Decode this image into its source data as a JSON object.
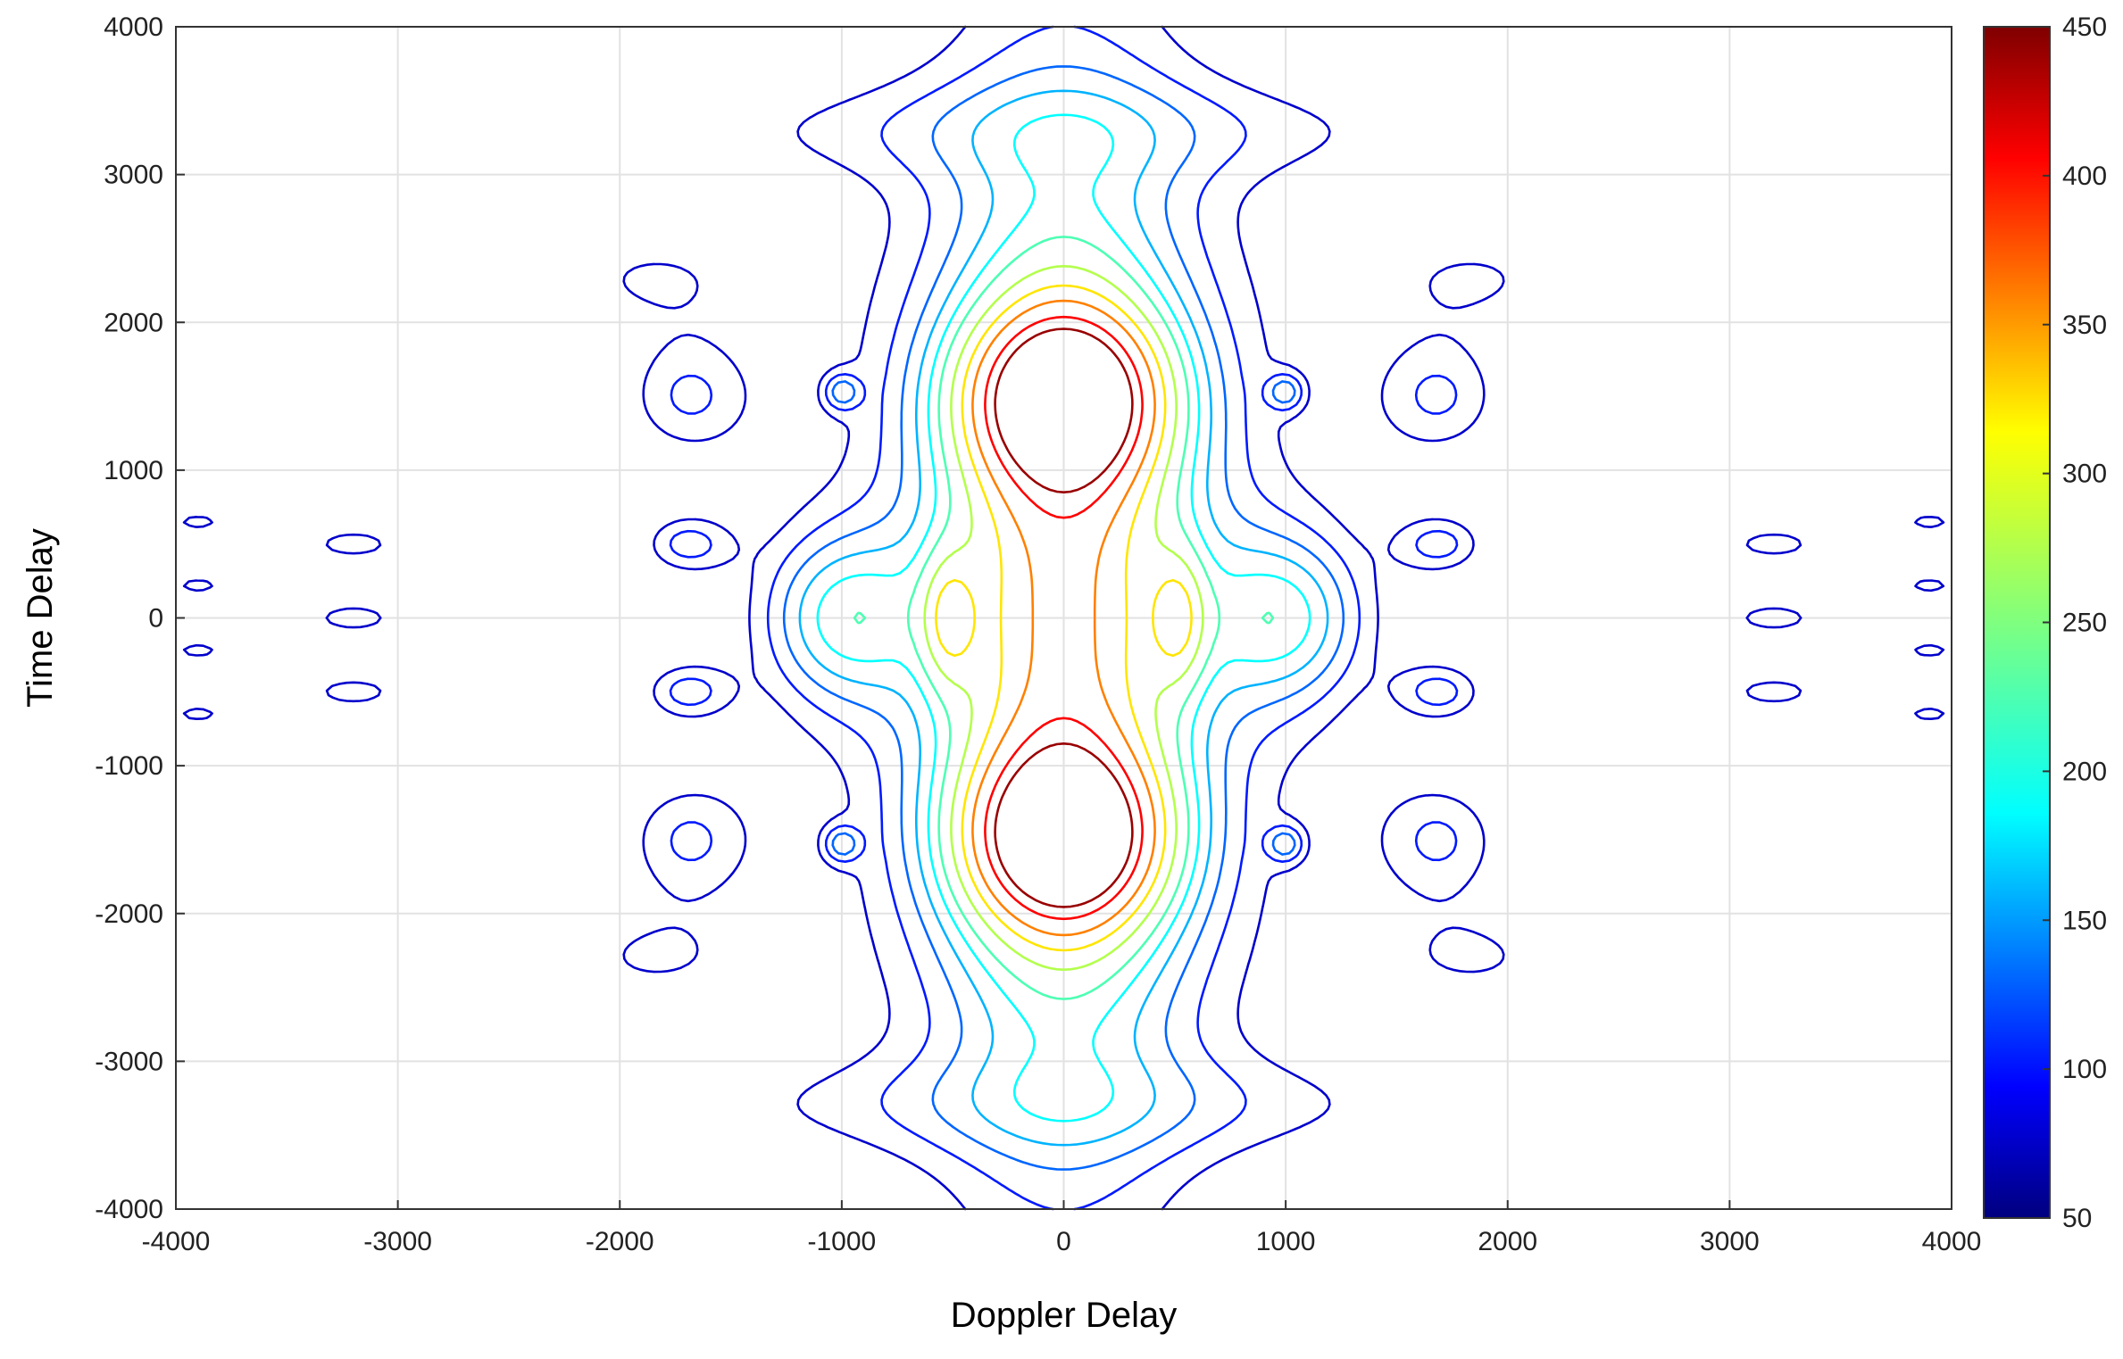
{
  "chart_data": {
    "type": "contour",
    "title": "",
    "xlabel": "Doppler Delay",
    "ylabel": "Time Delay",
    "xlim": [
      -4000,
      4000
    ],
    "ylim": [
      -4000,
      4000
    ],
    "xticks": [
      -4000,
      -3000,
      -2000,
      -1000,
      0,
      1000,
      2000,
      3000,
      4000
    ],
    "yticks": [
      -4000,
      -3000,
      -2000,
      -1000,
      0,
      1000,
      2000,
      3000,
      4000
    ],
    "grid": true,
    "colorbar": {
      "colormap": "jet",
      "range": [
        50,
        450
      ],
      "ticks": [
        50,
        100,
        150,
        200,
        250,
        300,
        350,
        400,
        450
      ]
    },
    "contour_levels": [
      80,
      110,
      140,
      170,
      200,
      230,
      270,
      310,
      350,
      400,
      440
    ],
    "features": [
      {
        "level": 80,
        "shape": "outer hourglass",
        "x_range": [
          -2200,
          2200
        ],
        "y_range": [
          -3500,
          3500
        ]
      },
      {
        "level": 110,
        "shape": "inner hourglass",
        "x_range": [
          -1100,
          1100
        ],
        "y_range": [
          -3100,
          3100
        ]
      },
      {
        "level": 140,
        "shape": "waist envelope",
        "x_range": [
          -750,
          750
        ],
        "y_range": [
          -3000,
          3000
        ]
      },
      {
        "level": 200,
        "shape": "central column",
        "x_range": [
          -500,
          500
        ],
        "y_range": [
          -2700,
          2700
        ]
      },
      {
        "level": 270,
        "shape": "central column",
        "x_range": [
          -360,
          360
        ],
        "y_range": [
          -2500,
          2500
        ]
      },
      {
        "level": 350,
        "shape": "peak ring",
        "x_range": [
          -350,
          350
        ],
        "y_range": [
          -2100,
          2100
        ]
      },
      {
        "level": 440,
        "shape": "peaks",
        "centers": [
          [
            0,
            1500
          ],
          [
            0,
            -1500
          ]
        ]
      },
      {
        "level": 170,
        "shape": "side lobes",
        "centers": [
          [
            -1000,
            0
          ],
          [
            1000,
            0
          ]
        ]
      },
      {
        "level": 80,
        "shape": "outer islands",
        "centers": [
          [
            -3200,
            500
          ],
          [
            -3200,
            0
          ],
          [
            -3200,
            -500
          ],
          [
            3200,
            500
          ],
          [
            3200,
            0
          ],
          [
            3200,
            -500
          ],
          [
            -3900,
            650
          ],
          [
            -3900,
            220
          ],
          [
            -3900,
            -220
          ],
          [
            -3900,
            -650
          ],
          [
            3900,
            650
          ],
          [
            3900,
            220
          ],
          [
            3900,
            -220
          ],
          [
            3900,
            -650
          ]
        ]
      }
    ]
  }
}
